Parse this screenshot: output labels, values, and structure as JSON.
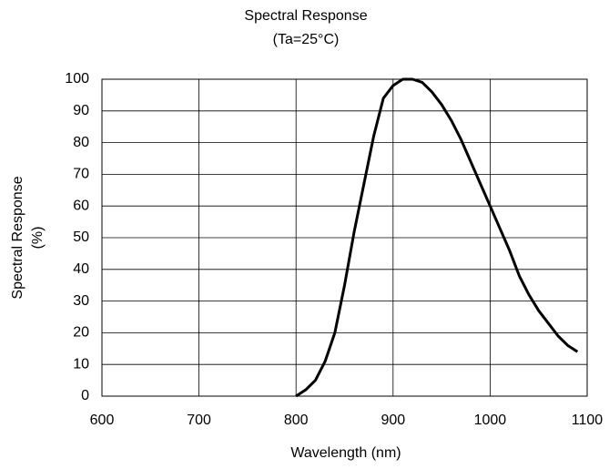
{
  "chart_data": {
    "type": "line",
    "title": "Spectral Response",
    "subtitle": "(Ta=25°C)",
    "xlabel": "Wavelength (nm)",
    "ylabel": [
      "Spectral Response",
      "(%)"
    ],
    "x": [
      800,
      810,
      820,
      830,
      840,
      850,
      860,
      870,
      880,
      890,
      900,
      910,
      920,
      930,
      940,
      950,
      960,
      970,
      980,
      990,
      1000,
      1010,
      1020,
      1030,
      1040,
      1050,
      1060,
      1070,
      1080,
      1090
    ],
    "series": [
      {
        "color": "#000000",
        "values": [
          0,
          2,
          5,
          11,
          20,
          35,
          52,
          67,
          82,
          94,
          98,
          100,
          100,
          99,
          96,
          92,
          87,
          81,
          74,
          67,
          60,
          53,
          46,
          38,
          32,
          27,
          23,
          19,
          16,
          14
        ]
      }
    ],
    "xlim": [
      600,
      1100
    ],
    "xticks": [
      600,
      700,
      800,
      900,
      1000,
      1100
    ],
    "ylim": [
      0,
      100
    ],
    "yticks": [
      0,
      10,
      20,
      30,
      40,
      50,
      60,
      70,
      80,
      90,
      100
    ],
    "grid": true
  }
}
